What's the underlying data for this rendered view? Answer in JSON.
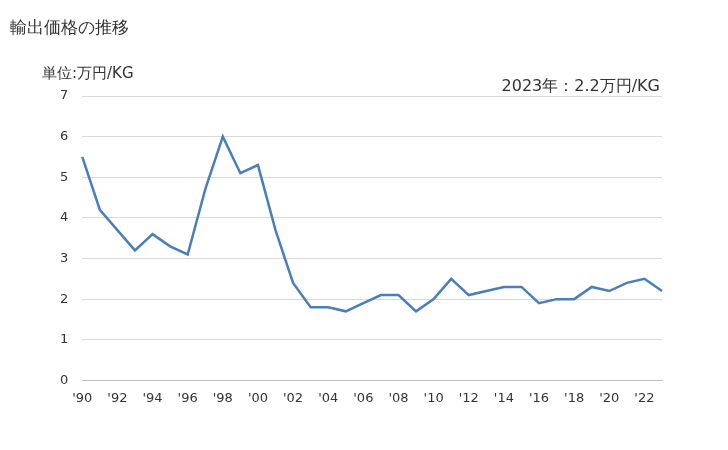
{
  "chart_data": {
    "type": "line",
    "title": "輸出価格の推移",
    "y_label": "単位:万円/KG",
    "annotation": "2023年：2.2万円/KG",
    "categories": [
      "'90",
      null,
      "'92",
      null,
      "'94",
      null,
      "'96",
      null,
      "'98",
      null,
      "'00",
      null,
      "'02",
      null,
      "'04",
      null,
      "'06",
      null,
      "'08",
      null,
      "'10",
      null,
      "'12",
      null,
      "'14",
      null,
      "'16",
      null,
      "'18",
      null,
      "'20",
      null,
      "'22",
      null
    ],
    "values": [
      5.5,
      4.2,
      3.7,
      3.2,
      3.6,
      3.3,
      3.1,
      4.7,
      6.0,
      5.1,
      5.3,
      3.7,
      2.4,
      1.8,
      1.8,
      1.7,
      1.9,
      2.1,
      2.1,
      1.7,
      2.0,
      2.5,
      2.1,
      2.2,
      2.3,
      2.3,
      1.9,
      2.0,
      2.0,
      2.3,
      2.2,
      2.4,
      2.5,
      2.2
    ],
    "color": "#4a7ebb",
    "ylim": [
      0,
      7
    ],
    "yticks": [
      0,
      1,
      2,
      3,
      4,
      5,
      6,
      7
    ],
    "grid": true
  }
}
